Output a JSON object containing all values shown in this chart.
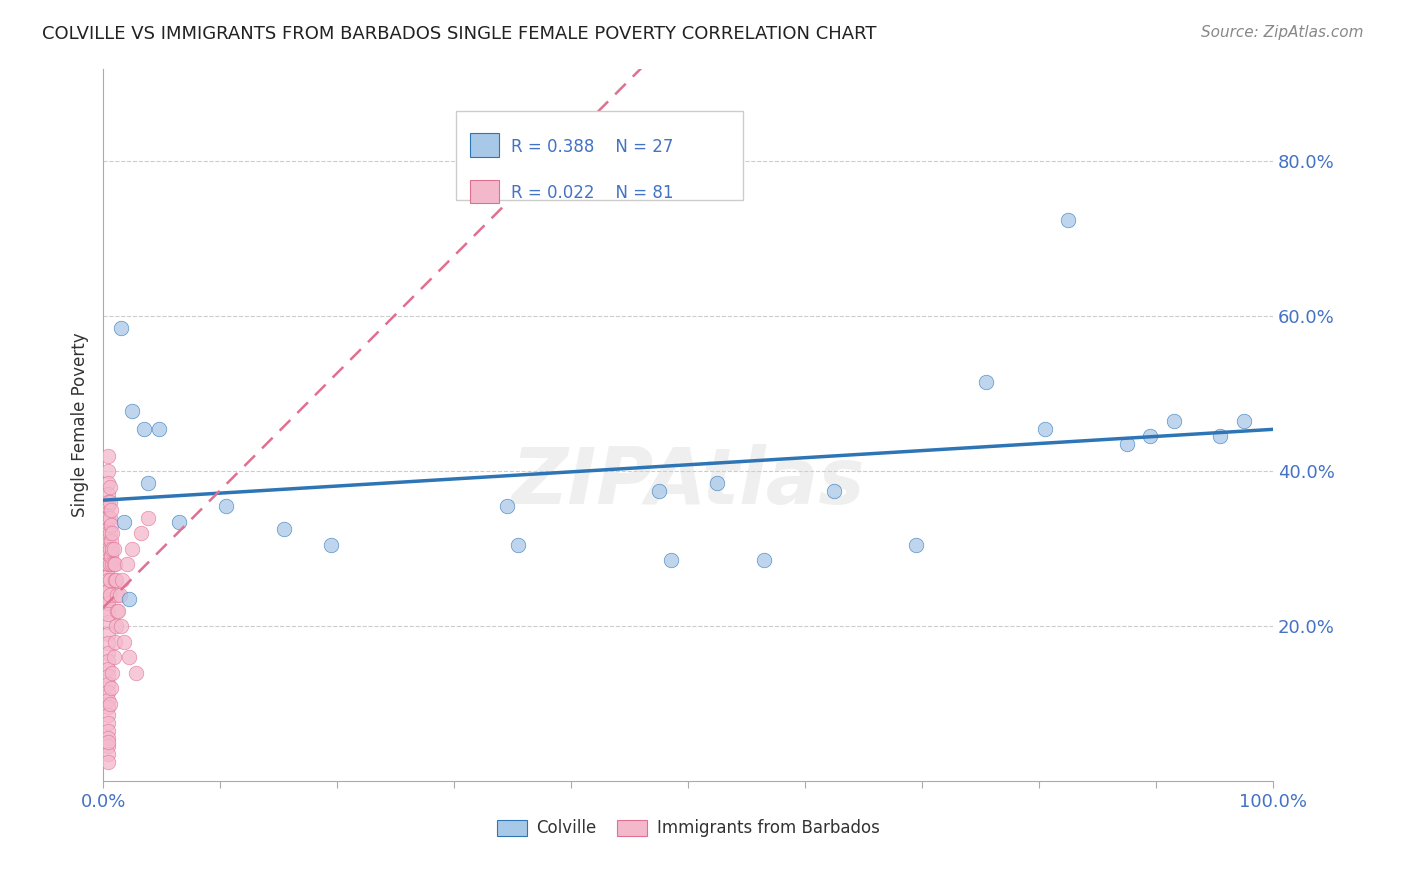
{
  "title": "COLVILLE VS IMMIGRANTS FROM BARBADOS SINGLE FEMALE POVERTY CORRELATION CHART",
  "source": "Source: ZipAtlas.com",
  "ylabel": "Single Female Poverty",
  "watermark": "ZIPAtlas",
  "legend_blue_label": "Colville",
  "legend_pink_label": "Immigrants from Barbados",
  "xlim": [
    0,
    1.0
  ],
  "ylim": [
    0,
    0.92
  ],
  "xticks": [
    0,
    0.1,
    0.2,
    0.3,
    0.4,
    0.5,
    0.6,
    0.7,
    0.8,
    0.9,
    1.0
  ],
  "yticks": [
    0.2,
    0.4,
    0.6,
    0.8
  ],
  "yticklabels": [
    "20.0%",
    "40.0%",
    "60.0%",
    "80.0%"
  ],
  "blue_color": "#A8C8E8",
  "pink_color": "#F4B8CC",
  "blue_line_color": "#2E75B6",
  "pink_line_color": "#E07090",
  "blue_x": [
    0.018,
    0.025,
    0.035,
    0.048,
    0.022,
    0.038,
    0.015,
    0.065,
    0.105,
    0.155,
    0.195,
    0.345,
    0.355,
    0.475,
    0.485,
    0.525,
    0.565,
    0.625,
    0.695,
    0.755,
    0.805,
    0.825,
    0.875,
    0.895,
    0.915,
    0.955,
    0.975
  ],
  "blue_y": [
    0.335,
    0.478,
    0.455,
    0.455,
    0.235,
    0.385,
    0.585,
    0.335,
    0.355,
    0.325,
    0.305,
    0.355,
    0.305,
    0.375,
    0.285,
    0.385,
    0.285,
    0.375,
    0.305,
    0.515,
    0.455,
    0.725,
    0.435,
    0.445,
    0.465,
    0.445,
    0.465
  ],
  "pink_x": [
    0.004,
    0.004,
    0.004,
    0.004,
    0.004,
    0.004,
    0.004,
    0.004,
    0.004,
    0.004,
    0.004,
    0.004,
    0.004,
    0.004,
    0.004,
    0.004,
    0.004,
    0.004,
    0.004,
    0.004,
    0.004,
    0.004,
    0.004,
    0.004,
    0.004,
    0.004,
    0.004,
    0.004,
    0.004,
    0.004,
    0.004,
    0.004,
    0.004,
    0.004,
    0.004,
    0.004,
    0.004,
    0.004,
    0.004,
    0.004,
    0.004,
    0.004,
    0.006,
    0.006,
    0.006,
    0.006,
    0.006,
    0.006,
    0.006,
    0.006,
    0.006,
    0.007,
    0.007,
    0.007,
    0.007,
    0.007,
    0.008,
    0.008,
    0.008,
    0.008,
    0.009,
    0.009,
    0.009,
    0.01,
    0.01,
    0.01,
    0.011,
    0.011,
    0.012,
    0.012,
    0.013,
    0.014,
    0.015,
    0.016,
    0.018,
    0.02,
    0.022,
    0.025,
    0.028,
    0.032,
    0.038
  ],
  "pink_y": [
    0.42,
    0.4,
    0.385,
    0.37,
    0.355,
    0.34,
    0.325,
    0.31,
    0.295,
    0.28,
    0.265,
    0.25,
    0.235,
    0.22,
    0.205,
    0.19,
    0.178,
    0.165,
    0.155,
    0.145,
    0.135,
    0.125,
    0.115,
    0.105,
    0.095,
    0.085,
    0.075,
    0.065,
    0.055,
    0.045,
    0.035,
    0.025,
    0.36,
    0.34,
    0.32,
    0.3,
    0.28,
    0.26,
    0.245,
    0.23,
    0.215,
    0.05,
    0.38,
    0.36,
    0.34,
    0.32,
    0.3,
    0.28,
    0.26,
    0.24,
    0.1,
    0.35,
    0.33,
    0.31,
    0.29,
    0.12,
    0.32,
    0.3,
    0.28,
    0.14,
    0.3,
    0.28,
    0.16,
    0.28,
    0.26,
    0.18,
    0.26,
    0.2,
    0.24,
    0.22,
    0.22,
    0.24,
    0.2,
    0.26,
    0.18,
    0.28,
    0.16,
    0.3,
    0.14,
    0.32,
    0.34
  ],
  "background_color": "#FFFFFF",
  "grid_color": "#CCCCCC"
}
